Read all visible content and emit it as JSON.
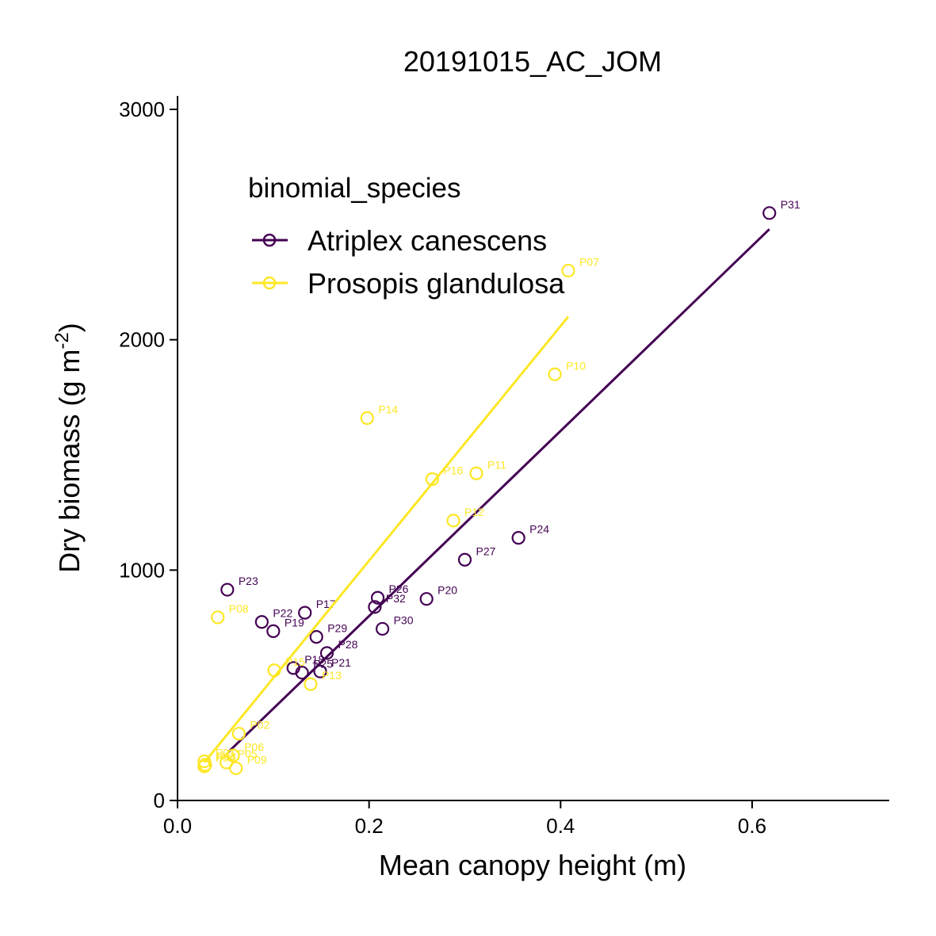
{
  "chart_data": {
    "type": "scatter",
    "title": "20191015_AC_JOM",
    "xlabel": "Mean canopy height (m)",
    "ylabel_main": "Dry biomass (g m",
    "ylabel_sup": "-2",
    "ylabel_end": ")",
    "xlim": [
      0,
      0.74
    ],
    "ylim": [
      0,
      3050
    ],
    "xticks": [
      0.0,
      0.2,
      0.4,
      0.6
    ],
    "xtick_labels": [
      "0.0",
      "0.2",
      "0.4",
      "0.6"
    ],
    "yticks": [
      0,
      1000,
      2000,
      3000
    ],
    "ytick_labels": [
      "0",
      "1000",
      "2000",
      "3000"
    ],
    "grid": false,
    "legend": {
      "title": "binomial_species",
      "position": "top-left"
    },
    "series": [
      {
        "name": "Atriplex canescens",
        "color": "#440154",
        "marker": "open-circle",
        "fit_line": [
          [
            0.053,
            210
          ],
          [
            0.618,
            2480
          ]
        ],
        "points": [
          {
            "label": "P31",
            "x": 0.618,
            "y": 2550
          },
          {
            "label": "P24",
            "x": 0.356,
            "y": 1140
          },
          {
            "label": "P27",
            "x": 0.3,
            "y": 1045
          },
          {
            "label": "P20",
            "x": 0.26,
            "y": 875
          },
          {
            "label": "P26",
            "x": 0.209,
            "y": 880
          },
          {
            "label": "P32",
            "x": 0.206,
            "y": 840
          },
          {
            "label": "P30",
            "x": 0.214,
            "y": 745
          },
          {
            "label": "P23",
            "x": 0.052,
            "y": 915
          },
          {
            "label": "P17",
            "x": 0.133,
            "y": 815
          },
          {
            "label": "P22",
            "x": 0.088,
            "y": 775
          },
          {
            "label": "P19",
            "x": 0.1,
            "y": 735
          },
          {
            "label": "P29",
            "x": 0.145,
            "y": 710
          },
          {
            "label": "P28",
            "x": 0.156,
            "y": 640
          },
          {
            "label": "P18",
            "x": 0.121,
            "y": 575
          },
          {
            "label": "P25",
            "x": 0.13,
            "y": 555
          },
          {
            "label": "P21",
            "x": 0.149,
            "y": 560
          }
        ]
      },
      {
        "name": "Prosopis glandulosa",
        "color": "#FDE725",
        "marker": "open-circle",
        "fit_line": [
          [
            0.028,
            165
          ],
          [
            0.408,
            2100
          ]
        ],
        "points": [
          {
            "label": "P07",
            "x": 0.408,
            "y": 2300
          },
          {
            "label": "P10",
            "x": 0.394,
            "y": 1850
          },
          {
            "label": "P14",
            "x": 0.198,
            "y": 1660
          },
          {
            "label": "P16",
            "x": 0.266,
            "y": 1395
          },
          {
            "label": "P11",
            "x": 0.312,
            "y": 1420
          },
          {
            "label": "P12",
            "x": 0.288,
            "y": 1215
          },
          {
            "label": "P08",
            "x": 0.042,
            "y": 795
          },
          {
            "label": "P15",
            "x": 0.101,
            "y": 565
          },
          {
            "label": "P13",
            "x": 0.139,
            "y": 505
          },
          {
            "label": "P02",
            "x": 0.064,
            "y": 290
          },
          {
            "label": "P06",
            "x": 0.058,
            "y": 195
          },
          {
            "label": "P05",
            "x": 0.051,
            "y": 165
          },
          {
            "label": "P09",
            "x": 0.061,
            "y": 140
          },
          {
            "label": "P01",
            "x": 0.028,
            "y": 170
          },
          {
            "label": "P03",
            "x": 0.029,
            "y": 155
          },
          {
            "label": "P04",
            "x": 0.028,
            "y": 148
          }
        ]
      }
    ]
  }
}
